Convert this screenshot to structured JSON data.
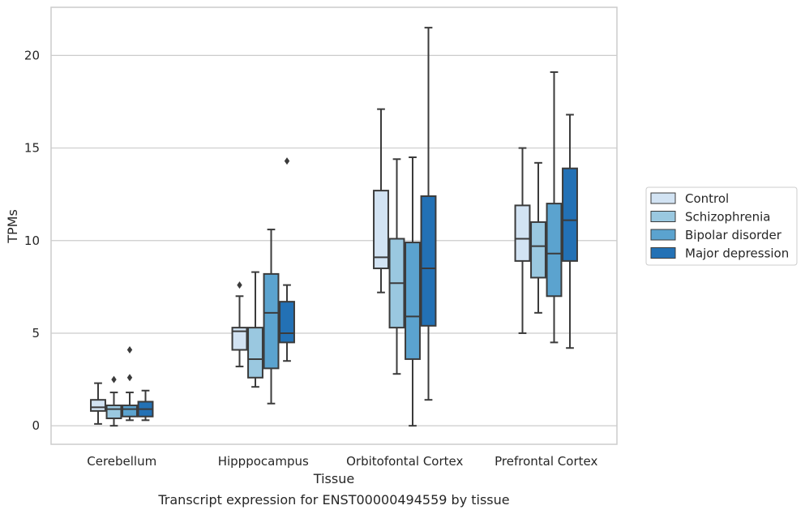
{
  "chart_data": {
    "type": "box",
    "title": "Transcript expression for ENST00000494559 by tissue",
    "xlabel": "Tissue",
    "ylabel": "TPMs",
    "ylim": [
      -1.0,
      22.6
    ],
    "yticks": [
      0,
      5,
      10,
      15,
      20
    ],
    "grid": true,
    "legend_position": "right",
    "categories": [
      "Cerebellum",
      "Hipppocampus",
      "Orbitofontal Cortex",
      "Prefrontal Cortex"
    ],
    "series": [
      {
        "name": "Control",
        "color": "#d2e3f3",
        "boxes": [
          {
            "whislo": 0.1,
            "q1": 0.8,
            "med": 1.0,
            "q3": 1.4,
            "whishi": 2.3,
            "fliers": []
          },
          {
            "whislo": 3.2,
            "q1": 4.1,
            "med": 5.1,
            "q3": 5.3,
            "whishi": 7.0,
            "fliers": [
              7.6
            ]
          },
          {
            "whislo": 7.2,
            "q1": 8.5,
            "med": 9.1,
            "q3": 12.7,
            "whishi": 17.1,
            "fliers": []
          },
          {
            "whislo": 5.0,
            "q1": 8.9,
            "med": 10.1,
            "q3": 11.9,
            "whishi": 15.0,
            "fliers": []
          }
        ]
      },
      {
        "name": "Schizophrenia",
        "color": "#9ac8e0",
        "boxes": [
          {
            "whislo": 0.0,
            "q1": 0.4,
            "med": 0.9,
            "q3": 1.1,
            "whishi": 1.8,
            "fliers": [
              2.5
            ]
          },
          {
            "whislo": 2.1,
            "q1": 2.6,
            "med": 3.6,
            "q3": 5.3,
            "whishi": 8.3,
            "fliers": []
          },
          {
            "whislo": 2.8,
            "q1": 5.3,
            "med": 7.7,
            "q3": 10.1,
            "whishi": 14.4,
            "fliers": []
          },
          {
            "whislo": 6.1,
            "q1": 8.0,
            "med": 9.7,
            "q3": 11.0,
            "whishi": 14.2,
            "fliers": []
          }
        ]
      },
      {
        "name": "Bipolar disorder",
        "color": "#5ba3cf",
        "boxes": [
          {
            "whislo": 0.3,
            "q1": 0.5,
            "med": 0.9,
            "q3": 1.1,
            "whishi": 1.8,
            "fliers": [
              2.6,
              4.1
            ]
          },
          {
            "whislo": 1.2,
            "q1": 3.1,
            "med": 6.1,
            "q3": 8.2,
            "whishi": 10.6,
            "fliers": []
          },
          {
            "whislo": 0.0,
            "q1": 3.6,
            "med": 5.9,
            "q3": 9.9,
            "whishi": 14.5,
            "fliers": []
          },
          {
            "whislo": 4.5,
            "q1": 7.0,
            "med": 9.3,
            "q3": 12.0,
            "whishi": 19.1,
            "fliers": []
          }
        ]
      },
      {
        "name": "Major depression",
        "color": "#2371b5",
        "boxes": [
          {
            "whislo": 0.3,
            "q1": 0.5,
            "med": 0.9,
            "q3": 1.3,
            "whishi": 1.9,
            "fliers": []
          },
          {
            "whislo": 3.5,
            "q1": 4.5,
            "med": 5.0,
            "q3": 6.7,
            "whishi": 7.6,
            "fliers": [
              14.3
            ]
          },
          {
            "whislo": 1.4,
            "q1": 5.4,
            "med": 8.5,
            "q3": 12.4,
            "whishi": 21.5,
            "fliers": []
          },
          {
            "whislo": 4.2,
            "q1": 8.9,
            "med": 11.1,
            "q3": 13.9,
            "whishi": 16.8,
            "fliers": []
          }
        ]
      }
    ]
  }
}
